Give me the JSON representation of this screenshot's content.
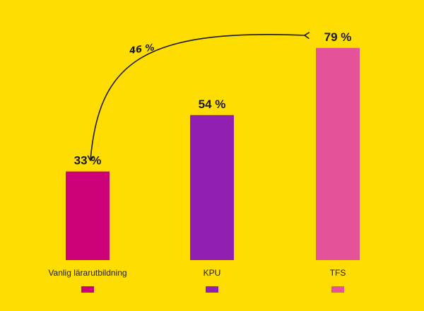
{
  "chart_data": {
    "type": "bar",
    "categories": [
      "Vanlig lärarutbildning",
      "KPU",
      "TFS"
    ],
    "values": [
      33,
      54,
      79
    ],
    "value_labels": [
      "33 %",
      "54 %",
      "79 %"
    ],
    "colors": [
      "#CC0077",
      "#9120B0",
      "#E4539A"
    ],
    "ylim": [
      0,
      100
    ],
    "grid": false,
    "legend": "bottom",
    "annotation": {
      "text": "46 %",
      "from": "Vanlig lärarutbildning",
      "to": "TFS"
    }
  }
}
